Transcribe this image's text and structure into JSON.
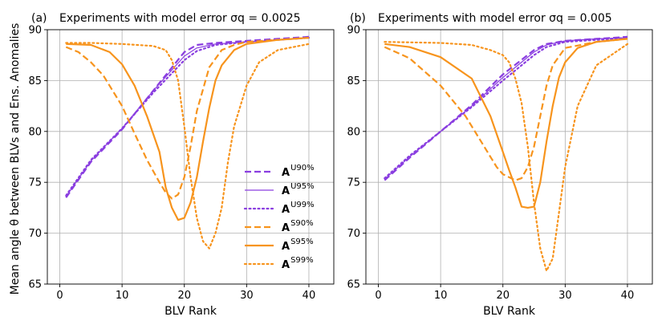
{
  "chart_data": [
    {
      "type": "line",
      "panel": "(a)",
      "title": "Experiments with model error σq = 0.0025",
      "xlabel": "BLV Rank",
      "ylabel": "Mean angle θ between BLVs and Ens. Anomalies",
      "xlim": [
        -2,
        44
      ],
      "ylim": [
        65,
        90
      ],
      "xticks": [
        0,
        10,
        20,
        30,
        40
      ],
      "yticks": [
        65,
        70,
        75,
        80,
        85,
        90
      ],
      "grid": true,
      "legend_position": "center-right",
      "series": [
        {
          "name": "U90%",
          "color": "#8a3ee0",
          "style": "dashed",
          "width": 2.2,
          "x": [
            1,
            5,
            10,
            15,
            20,
            22,
            25,
            30,
            35,
            40
          ],
          "y": [
            73.5,
            77,
            80.2,
            84,
            87.8,
            88.5,
            88.7,
            88.9,
            89.1,
            89.3
          ]
        },
        {
          "name": "U95%",
          "color": "#8a3ee0",
          "style": "solid",
          "width": 1.2,
          "x": [
            1,
            5,
            10,
            15,
            20,
            22,
            25,
            30,
            35,
            40
          ],
          "y": [
            73.6,
            77.1,
            80.3,
            84,
            87.4,
            88.2,
            88.6,
            88.8,
            89.0,
            89.2
          ]
        },
        {
          "name": "U99%",
          "color": "#8a3ee0",
          "style": "dotted",
          "width": 2.2,
          "x": [
            1,
            5,
            10,
            15,
            20,
            22,
            25,
            30,
            35,
            40
          ],
          "y": [
            73.7,
            77.2,
            80.3,
            83.8,
            87.0,
            87.9,
            88.5,
            88.8,
            89.0,
            89.2
          ]
        },
        {
          "name": "S90%",
          "color": "#f7941d",
          "style": "dashed",
          "width": 2.2,
          "x": [
            1,
            3,
            5,
            7,
            10,
            12,
            14,
            16,
            17,
            18,
            19,
            20,
            21,
            22,
            24,
            26,
            28,
            30,
            35,
            40
          ],
          "y": [
            88.3,
            87.8,
            86.8,
            85.5,
            82.5,
            79.8,
            77.2,
            75,
            74,
            73.4,
            73.8,
            75.5,
            78.5,
            82,
            86.3,
            88,
            88.5,
            88.8,
            89,
            89.2
          ]
        },
        {
          "name": "S95%",
          "color": "#f7941d",
          "style": "solid",
          "width": 2.2,
          "x": [
            1,
            5,
            8,
            10,
            12,
            14,
            16,
            17,
            18,
            19,
            20,
            21,
            22,
            23,
            24,
            25,
            26,
            28,
            30,
            35,
            40
          ],
          "y": [
            88.6,
            88.5,
            87.8,
            86.6,
            84.5,
            81.5,
            78,
            74.5,
            72.5,
            71.3,
            71.5,
            73,
            75.5,
            79,
            82.3,
            85,
            86.5,
            88,
            88.6,
            89,
            89.2
          ]
        },
        {
          "name": "S99%",
          "color": "#f7941d",
          "style": "dotted",
          "width": 2.2,
          "x": [
            1,
            5,
            10,
            15,
            17,
            18,
            19,
            20,
            21,
            22,
            23,
            24,
            25,
            26,
            27,
            28,
            30,
            32,
            35,
            40
          ],
          "y": [
            88.7,
            88.7,
            88.6,
            88.4,
            88,
            87,
            85,
            80.5,
            75.5,
            71.5,
            69.2,
            68.5,
            70,
            72.5,
            77,
            80.5,
            84.5,
            86.8,
            88,
            88.6
          ]
        }
      ]
    },
    {
      "type": "line",
      "panel": "(b)",
      "title": "Experiments with model error σq = 0.005",
      "xlabel": "BLV Rank",
      "ylabel": "",
      "xlim": [
        -2,
        44
      ],
      "ylim": [
        65,
        90
      ],
      "xticks": [
        0,
        10,
        20,
        30,
        40
      ],
      "yticks": [
        65,
        70,
        75,
        80,
        85,
        90
      ],
      "grid": true,
      "series": [
        {
          "name": "U90%",
          "color": "#8a3ee0",
          "style": "dashed",
          "width": 2.2,
          "x": [
            1,
            5,
            10,
            15,
            20,
            25,
            27,
            30,
            35,
            40
          ],
          "y": [
            75.2,
            77.4,
            80,
            82.6,
            85.6,
            88,
            88.6,
            88.9,
            89.1,
            89.3
          ]
        },
        {
          "name": "U95%",
          "color": "#8a3ee0",
          "style": "solid",
          "width": 1.2,
          "x": [
            1,
            5,
            10,
            15,
            20,
            25,
            27,
            30,
            35,
            40
          ],
          "y": [
            75.3,
            77.5,
            80,
            82.5,
            85.3,
            87.8,
            88.5,
            88.9,
            89.1,
            89.2
          ]
        },
        {
          "name": "U99%",
          "color": "#8a3ee0",
          "style": "dotted",
          "width": 2.2,
          "x": [
            1,
            5,
            10,
            15,
            20,
            25,
            27,
            30,
            35,
            40
          ],
          "y": [
            75.4,
            77.6,
            80,
            82.4,
            85,
            87.5,
            88.3,
            88.8,
            89,
            89.2
          ]
        },
        {
          "name": "S90%",
          "color": "#f7941d",
          "style": "dashed",
          "width": 2.2,
          "x": [
            1,
            5,
            10,
            14,
            17,
            19,
            20,
            22,
            23,
            24,
            25,
            26,
            27,
            28,
            30,
            35,
            40
          ],
          "y": [
            88.3,
            87.2,
            84.5,
            81.5,
            78.5,
            76.5,
            75.8,
            75.2,
            75.4,
            76.5,
            78.5,
            81.5,
            84.5,
            86.5,
            88.2,
            88.8,
            89.1
          ]
        },
        {
          "name": "S95%",
          "color": "#f7941d",
          "style": "solid",
          "width": 2.2,
          "x": [
            1,
            5,
            10,
            15,
            18,
            20,
            21,
            22,
            23,
            24,
            25,
            26,
            27,
            28,
            29,
            30,
            32,
            35,
            40
          ],
          "y": [
            88.6,
            88.3,
            87.3,
            85.2,
            81.5,
            78,
            76.2,
            74.5,
            72.6,
            72.5,
            72.6,
            75,
            79,
            82.5,
            85.3,
            86.8,
            88.2,
            88.8,
            89.1
          ]
        },
        {
          "name": "S99%",
          "color": "#f7941d",
          "style": "dotted",
          "width": 2.2,
          "x": [
            1,
            10,
            15,
            18,
            20,
            21,
            22,
            23,
            24,
            25,
            26,
            27,
            28,
            29,
            30,
            32,
            35,
            40
          ],
          "y": [
            88.8,
            88.7,
            88.5,
            88,
            87.5,
            86.8,
            85.2,
            82.8,
            78.5,
            73,
            68.5,
            66.3,
            67.5,
            72,
            76.5,
            82.5,
            86.5,
            88.6
          ]
        }
      ]
    }
  ],
  "legend": {
    "base": "A",
    "items": [
      {
        "sup": "U90%",
        "color": "#8a3ee0",
        "style": "dashed",
        "width": 2.2
      },
      {
        "sup": "U95%",
        "color": "#8a3ee0",
        "style": "solid",
        "width": 1.2
      },
      {
        "sup": "U99%",
        "color": "#8a3ee0",
        "style": "dotted",
        "width": 2.2
      },
      {
        "sup": "S90%",
        "color": "#f7941d",
        "style": "dashed",
        "width": 2.2
      },
      {
        "sup": "S95%",
        "color": "#f7941d",
        "style": "solid",
        "width": 2.2
      },
      {
        "sup": "S99%",
        "color": "#f7941d",
        "style": "dotted",
        "width": 2.2
      }
    ]
  }
}
